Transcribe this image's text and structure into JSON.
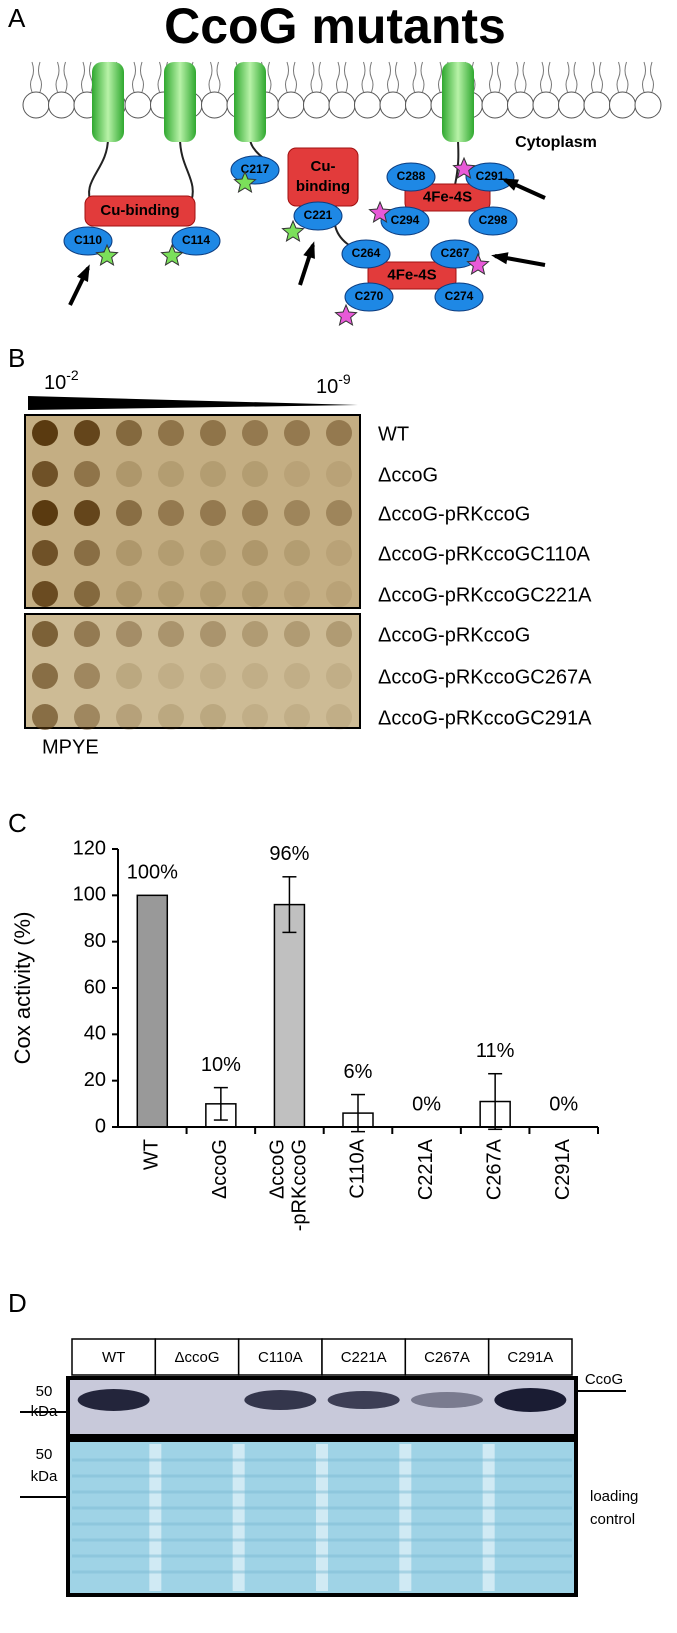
{
  "panel_labels": [
    "A",
    "B",
    "C",
    "D"
  ],
  "panel_a": {
    "title": "CcoG mutants",
    "compartment": "Cytoplasm",
    "domains": [
      "Cu-binding",
      "Cu- binding",
      "4Fe-4S",
      "4Fe-4S"
    ],
    "residues": [
      "C110",
      "C114",
      "C217",
      "C221",
      "C288",
      "C291",
      "C294",
      "C298",
      "C264",
      "C267",
      "C270",
      "C274"
    ]
  },
  "panel_b": {
    "dilution_start": {
      "base": "10",
      "exponent": "-2"
    },
    "dilution_end": {
      "base": "10",
      "exponent": "-9"
    },
    "strains": [
      "WT",
      "ΔccoG",
      "ΔccoG-pRKccoG",
      "ΔccoG-pRKccoGC110A",
      "ΔccoG-pRKccoGC221A",
      "ΔccoG-pRKccoG",
      "ΔccoG-pRKccoGC267A",
      "ΔccoG-pRKccoGC291A"
    ],
    "medium": "MPYE"
  },
  "chart_data": {
    "type": "bar",
    "y_label": "Cox activity (%)",
    "categories": [
      "WT",
      "ΔccoG",
      "ΔccoG -pRKccoG",
      "C110A",
      "C221A",
      "C267A",
      "C291A"
    ],
    "values": [
      100,
      10,
      96,
      6,
      0,
      11,
      0
    ],
    "errors": [
      null,
      7,
      12,
      8,
      null,
      12,
      null
    ],
    "value_labels": [
      "100%",
      "10%",
      "96%",
      "6%",
      "0%",
      "11%",
      "0%"
    ],
    "colors": [
      "#999999",
      "#ffffff",
      "#c0c0c0",
      "#ffffff",
      "#ffffff",
      "#ffffff",
      "#ffffff"
    ],
    "ylim": [
      0,
      120
    ],
    "yticks": [
      0,
      20,
      40,
      60,
      80,
      100,
      120
    ]
  },
  "panel_d": {
    "lanes": [
      "WT",
      "ΔccoG",
      "C110A",
      "C221A",
      "C267A",
      "C291A"
    ],
    "marker": [
      "50",
      "kDa"
    ],
    "blot_label": "CcoG",
    "control_label": [
      "loading",
      "control"
    ]
  }
}
